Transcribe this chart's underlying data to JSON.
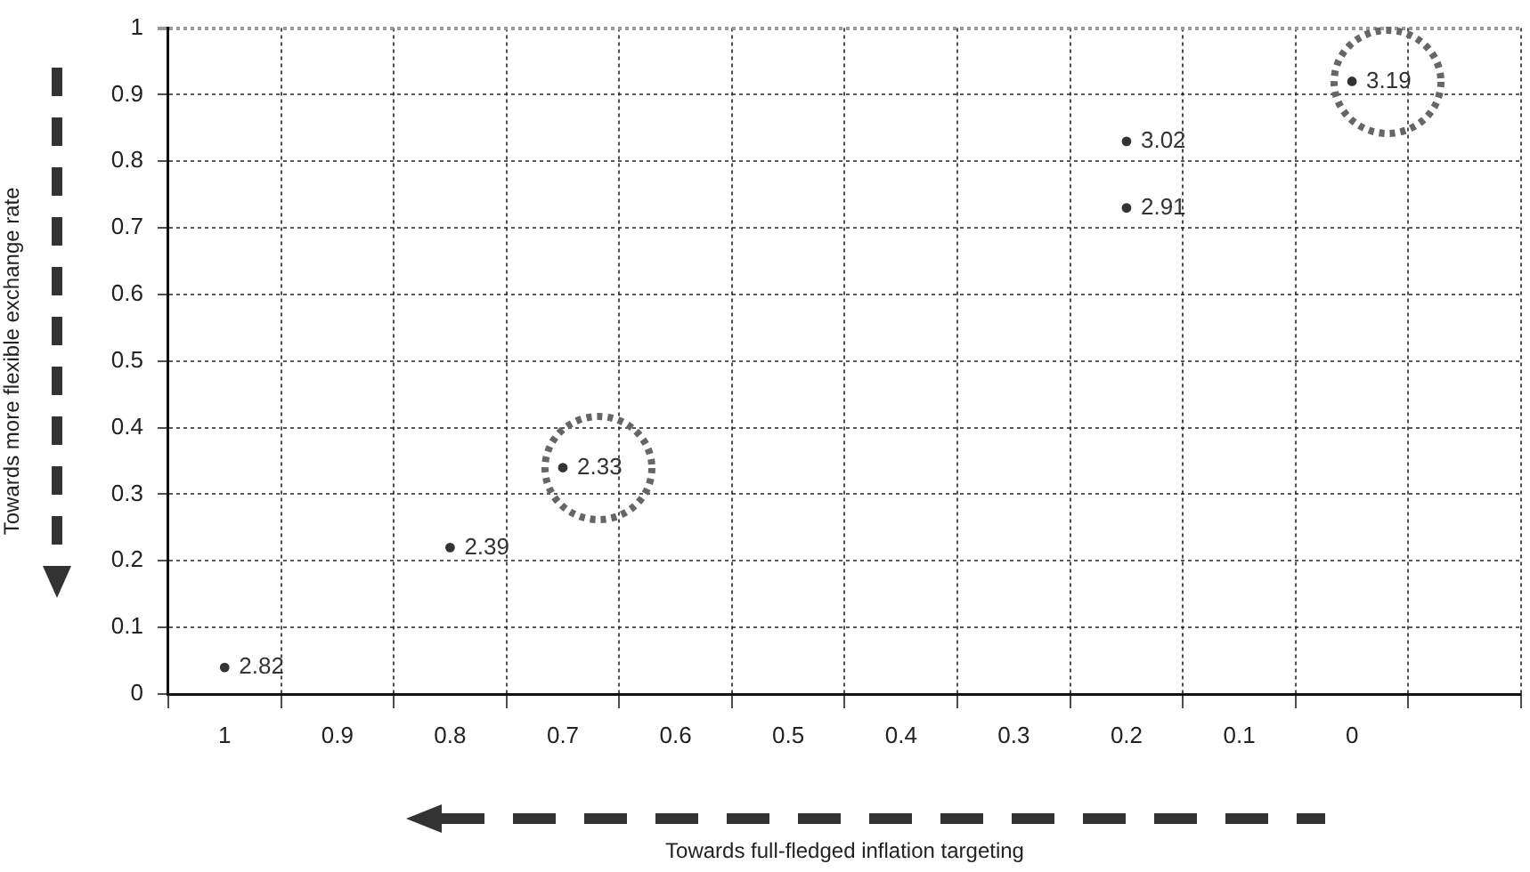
{
  "chart_data": {
    "type": "scatter",
    "xlabel": "Towards full-fledged inflation targeting",
    "ylabel": "Towards more flexible exchange rate",
    "categories": [
      "1",
      "0.9",
      "0.8",
      "0.7",
      "0.6",
      "0.5",
      "0.4",
      "0.3",
      "0.2",
      "0.1",
      "0",
      null
    ],
    "series": [
      {
        "x": [
          "1",
          "0.8",
          "0.7",
          "0.2",
          "0.2",
          "0"
        ],
        "values": [
          0.04,
          0.22,
          0.34,
          0.83,
          0.73,
          0.92
        ],
        "color": "#333333"
      }
    ],
    "annotations": [
      {
        "text": "2.82",
        "x": "1",
        "y": 0.04
      },
      {
        "text": "2.39",
        "x": "0.8",
        "y": 0.22
      },
      {
        "text": "2.33",
        "x": "0.7",
        "y": 0.34
      },
      {
        "text": "3.02",
        "x": "0.2",
        "y": 0.83
      },
      {
        "text": "2.91",
        "x": "0.2",
        "y": 0.73
      },
      {
        "text": "3.19",
        "x": "0",
        "y": 0.92
      }
    ],
    "ylim": [
      0,
      1
    ],
    "yticks": [
      0,
      0.1,
      0.2,
      0.3,
      0.4,
      0.5,
      0.6,
      0.7,
      0.8,
      0.9,
      1
    ],
    "grid": true,
    "legend": false,
    "marker": "circle"
  }
}
